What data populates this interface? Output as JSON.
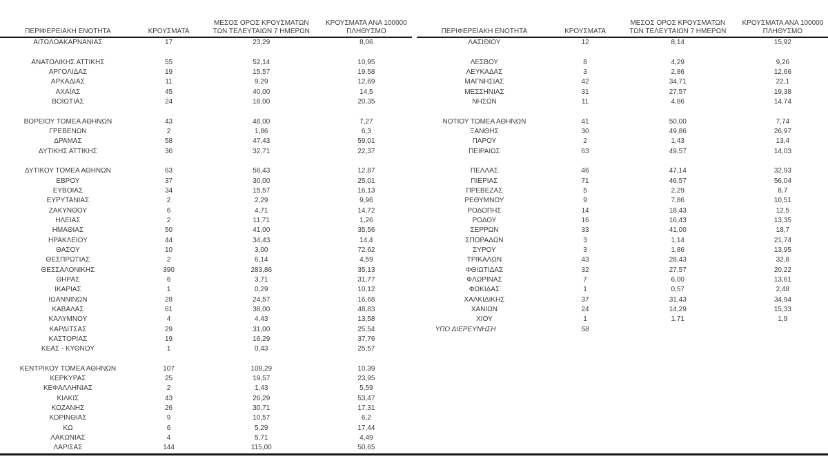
{
  "colors": {
    "background": "#ffffff",
    "text": "#3b3b3b",
    "rule": "#161616"
  },
  "headers": {
    "region": "ΠΕΡΙΦΕΡΕΙΑΚΗ ΕΝΟΤΗΤΑ",
    "cases": "ΚΡΟΥΣΜΑΤΑ",
    "avg7": "ΜΕΣΟΣ ΟΡΟΣ ΚΡΟΥΣΜΑΤΩΝ ΤΩΝ ΤΕΛΕΥΤΑΙΩΝ 7 ΗΜΕΡΩΝ",
    "per100k": "ΚΡΟΥΣΜΑΤΑ ΑΝΑ 100000 ΠΛΗΘΥΣΜΟ"
  },
  "tables": [
    {
      "rows": [
        {
          "region": "ΑΙΤΩΛΟΑΚΑΡΝΑΝΙΑΣ",
          "cases": "17",
          "avg7": "23,29",
          "per100k": "8,06"
        },
        {
          "spacer": true
        },
        {
          "region": "ΑΝΑΤΟΛΙΚΗΣ ΑΤΤΙΚΗΣ",
          "cases": "55",
          "avg7": "52,14",
          "per100k": "10,95"
        },
        {
          "region": "ΑΡΓΟΛΙΔΑΣ",
          "cases": "19",
          "avg7": "15,57",
          "per100k": "19,58"
        },
        {
          "region": "ΑΡΚΑΔΙΑΣ",
          "cases": "11",
          "avg7": "9,29",
          "per100k": "12,69"
        },
        {
          "region": "ΑΧΑΪΑΣ",
          "cases": "45",
          "avg7": "40,00",
          "per100k": "14,5"
        },
        {
          "region": "ΒΟΙΩΤΙΑΣ",
          "cases": "24",
          "avg7": "18,00",
          "per100k": "20,35"
        },
        {
          "spacer": true
        },
        {
          "region": "ΒΟΡΕΙΟΥ ΤΟΜΕΑ ΑΘΗΝΩΝ",
          "cases": "43",
          "avg7": "48,00",
          "per100k": "7,27"
        },
        {
          "region": "ΓΡΕΒΕΝΩΝ",
          "cases": "2",
          "avg7": "1,86",
          "per100k": "6,3"
        },
        {
          "region": "ΔΡΑΜΑΣ",
          "cases": "58",
          "avg7": "47,43",
          "per100k": "59,01"
        },
        {
          "region": "ΔΥΤΙΚΗΣ ΑΤΤΙΚΗΣ",
          "cases": "36",
          "avg7": "32,71",
          "per100k": "22,37"
        },
        {
          "spacer": true
        },
        {
          "region": "ΔΥΤΙΚΟΥ ΤΟΜΕΑ ΑΘΗΝΩΝ",
          "cases": "63",
          "avg7": "56,43",
          "per100k": "12,87"
        },
        {
          "region": "ΕΒΡΟΥ",
          "cases": "37",
          "avg7": "30,00",
          "per100k": "25,01"
        },
        {
          "region": "ΕΥΒΟΙΑΣ",
          "cases": "34",
          "avg7": "15,57",
          "per100k": "16,13"
        },
        {
          "region": "ΕΥΡΥΤΑΝΙΑΣ",
          "cases": "2",
          "avg7": "2,29",
          "per100k": "9,96"
        },
        {
          "region": "ΖΑΚΥΝΘΟΥ",
          "cases": "6",
          "avg7": "4,71",
          "per100k": "14,72"
        },
        {
          "region": "ΗΛΕΙΑΣ",
          "cases": "2",
          "avg7": "11,71",
          "per100k": "1,26"
        },
        {
          "region": "ΗΜΑΘΙΑΣ",
          "cases": "50",
          "avg7": "41,00",
          "per100k": "35,56"
        },
        {
          "region": "ΗΡΑΚΛΕΙΟΥ",
          "cases": "44",
          "avg7": "34,43",
          "per100k": "14,4"
        },
        {
          "region": "ΘΑΣΟΥ",
          "cases": "10",
          "avg7": "3,00",
          "per100k": "72,62"
        },
        {
          "region": "ΘΕΣΠΡΩΤΙΑΣ",
          "cases": "2",
          "avg7": "6,14",
          "per100k": "4,59"
        },
        {
          "region": "ΘΕΣΣΑΛΟΝΙΚΗΣ",
          "cases": "390",
          "avg7": "283,86",
          "per100k": "35,13"
        },
        {
          "region": "ΘΗΡΑΣ",
          "cases": "6",
          "avg7": "3,71",
          "per100k": "31,77"
        },
        {
          "region": "ΙΚΑΡΙΑΣ",
          "cases": "1",
          "avg7": "0,29",
          "per100k": "10,12"
        },
        {
          "region": "ΙΩΑΝΝΙΝΩΝ",
          "cases": "28",
          "avg7": "24,57",
          "per100k": "16,68"
        },
        {
          "region": "ΚΑΒΑΛΑΣ",
          "cases": "61",
          "avg7": "38,00",
          "per100k": "48,83"
        },
        {
          "region": "ΚΑΛΥΜΝΟΥ",
          "cases": "4",
          "avg7": "4,43",
          "per100k": "13,58"
        },
        {
          "region": "ΚΑΡΔΙΤΣΑΣ",
          "cases": "29",
          "avg7": "31,00",
          "per100k": "25,54"
        },
        {
          "region": "ΚΑΣΤΟΡΙΑΣ",
          "cases": "19",
          "avg7": "16,29",
          "per100k": "37,76"
        },
        {
          "region": "ΚΕΑΣ - ΚΥΘΝΟΥ",
          "cases": "1",
          "avg7": "0,43",
          "per100k": "25,57"
        },
        {
          "spacer": true
        },
        {
          "region": "ΚΕΝΤΡΙΚΟΥ ΤΟΜΕΑ ΑΘΗΝΩΝ",
          "cases": "107",
          "avg7": "108,29",
          "per100k": "10,39"
        },
        {
          "region": "ΚΕΡΚΥΡΑΣ",
          "cases": "25",
          "avg7": "19,57",
          "per100k": "23,95"
        },
        {
          "region": "ΚΕΦΑΛΛΗΝΙΑΣ",
          "cases": "2",
          "avg7": "1,43",
          "per100k": "5,59"
        },
        {
          "region": "ΚΙΛΚΙΣ",
          "cases": "43",
          "avg7": "26,29",
          "per100k": "53,47"
        },
        {
          "region": "ΚΟΖΑΝΗΣ",
          "cases": "26",
          "avg7": "30,71",
          "per100k": "17,31"
        },
        {
          "region": "ΚΟΡΙΝΘΙΑΣ",
          "cases": "9",
          "avg7": "10,57",
          "per100k": "6,2"
        },
        {
          "region": "ΚΩ",
          "cases": "6",
          "avg7": "5,29",
          "per100k": "17,44"
        },
        {
          "region": "ΛΑΚΩΝΙΑΣ",
          "cases": "4",
          "avg7": "5,71",
          "per100k": "4,49"
        },
        {
          "region": "ΛΑΡΙΣΑΣ",
          "cases": "144",
          "avg7": "115,00",
          "per100k": "50,65"
        }
      ]
    },
    {
      "rows": [
        {
          "region": "ΛΑΣΙΘΙΟΥ",
          "cases": "12",
          "avg7": "8,14",
          "per100k": "15,92"
        },
        {
          "spacer": true
        },
        {
          "region": "ΛΕΣΒΟΥ",
          "cases": "8",
          "avg7": "4,29",
          "per100k": "9,26"
        },
        {
          "region": "ΛΕΥΚΑΔΑΣ",
          "cases": "3",
          "avg7": "2,86",
          "per100k": "12,66"
        },
        {
          "region": "ΜΑΓΝΗΣΙΑΣ",
          "cases": "42",
          "avg7": "34,71",
          "per100k": "22,1"
        },
        {
          "region": "ΜΕΣΣΗΝΙΑΣ",
          "cases": "31",
          "avg7": "27,57",
          "per100k": "19,38"
        },
        {
          "region": "ΝΗΣΩΝ",
          "cases": "11",
          "avg7": "4,86",
          "per100k": "14,74"
        },
        {
          "spacer": true
        },
        {
          "region": "ΝΟΤΙΟΥ ΤΟΜΕΑ ΑΘΗΝΩΝ",
          "cases": "41",
          "avg7": "50,00",
          "per100k": "7,74"
        },
        {
          "region": "ΞΑΝΘΗΣ",
          "cases": "30",
          "avg7": "49,86",
          "per100k": "26,97"
        },
        {
          "region": "ΠΑΡΟΥ",
          "cases": "2",
          "avg7": "1,43",
          "per100k": "13,4"
        },
        {
          "region": "ΠΕΙΡΑΙΩΣ",
          "cases": "63",
          "avg7": "49,57",
          "per100k": "14,03"
        },
        {
          "spacer": true
        },
        {
          "region": "ΠΕΛΛΑΣ",
          "cases": "46",
          "avg7": "47,14",
          "per100k": "32,93"
        },
        {
          "region": "ΠΙΕΡΙΑΣ",
          "cases": "71",
          "avg7": "46,57",
          "per100k": "56,04"
        },
        {
          "region": "ΠΡΕΒΕΖΑΣ",
          "cases": "5",
          "avg7": "2,29",
          "per100k": "8,7"
        },
        {
          "region": "ΡΕΘΥΜΝΟΥ",
          "cases": "9",
          "avg7": "7,86",
          "per100k": "10,51"
        },
        {
          "region": "ΡΟΔΟΠΗΣ",
          "cases": "14",
          "avg7": "18,43",
          "per100k": "12,5"
        },
        {
          "region": "ΡΟΔΟΥ",
          "cases": "16",
          "avg7": "16,43",
          "per100k": "13,35"
        },
        {
          "region": "ΣΕΡΡΩΝ",
          "cases": "33",
          "avg7": "41,00",
          "per100k": "18,7"
        },
        {
          "region": "ΣΠΟΡΑΔΩΝ",
          "cases": "3",
          "avg7": "1,14",
          "per100k": "21,74"
        },
        {
          "region": "ΣΥΡΟΥ",
          "cases": "3",
          "avg7": "1,86",
          "per100k": "13,95"
        },
        {
          "region": "ΤΡΙΚΑΛΩΝ",
          "cases": "43",
          "avg7": "28,43",
          "per100k": "32,8"
        },
        {
          "region": "ΦΘΙΩΤΙΔΑΣ",
          "cases": "32",
          "avg7": "27,57",
          "per100k": "20,22"
        },
        {
          "region": "ΦΛΩΡΙΝΑΣ",
          "cases": "7",
          "avg7": "6,00",
          "per100k": "13,61"
        },
        {
          "region": "ΦΩΚΙΔΑΣ",
          "cases": "1",
          "avg7": "0,57",
          "per100k": "2,48"
        },
        {
          "region": "ΧΑΛΚΙΔΙΚΗΣ",
          "cases": "37",
          "avg7": "31,43",
          "per100k": "34,94"
        },
        {
          "region": "ΧΑΝΙΩΝ",
          "cases": "24",
          "avg7": "14,29",
          "per100k": "15,33"
        },
        {
          "region": "ΧΙΟΥ",
          "cases": "1",
          "avg7": "1,71",
          "per100k": "1,9"
        },
        {
          "region": "ΥΠΟ ΔΙΕΡΕΥΝΗΣΗ",
          "cases": "58",
          "avg7": "",
          "per100k": "",
          "style": "investigation"
        }
      ]
    }
  ]
}
